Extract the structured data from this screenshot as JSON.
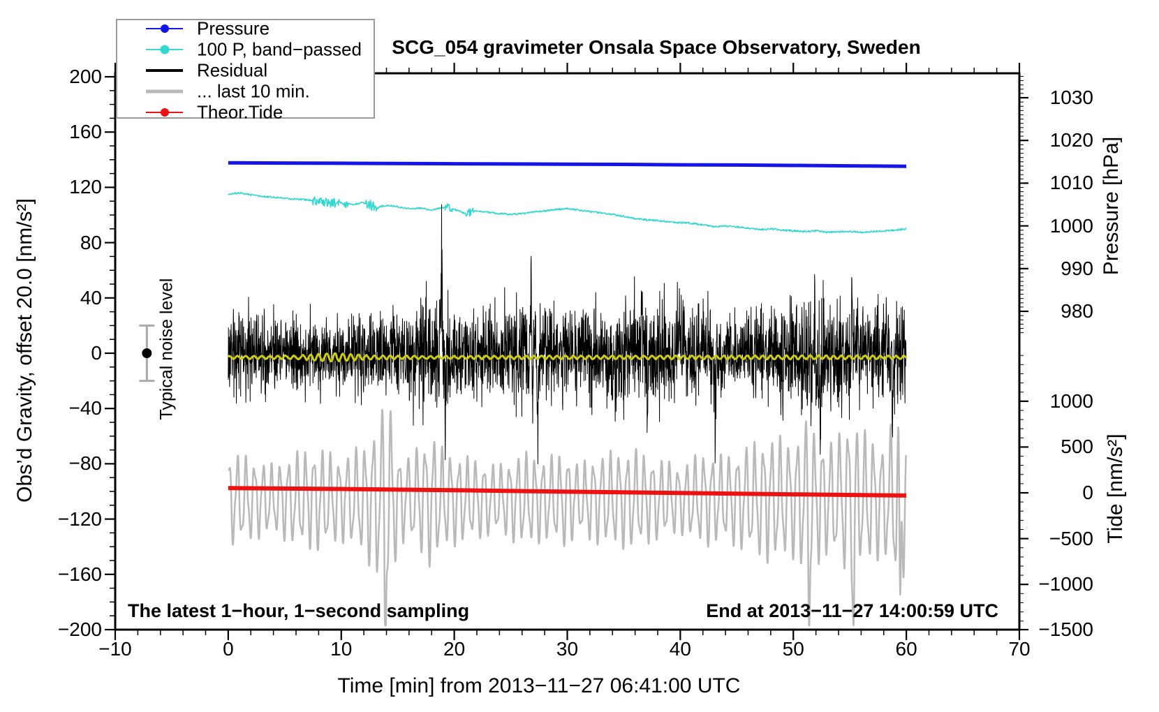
{
  "title": "SCG_054 gravimeter Onsala Space Observatory, Sweden",
  "annotations": {
    "sampling_note": "The latest 1−hour, 1−second sampling",
    "end_time_note": "End at 2013−11−27 14:00:59 UTC",
    "noise_level_label": "Typical noise level",
    "noise_marker": {
      "t_min": -7.2,
      "value": 0,
      "error": 20,
      "bar_color": "#aaaaaa",
      "dot_color": "#000000"
    }
  },
  "legend": {
    "items": [
      {
        "label": "Pressure",
        "color": "#1515e8",
        "line_width": 2,
        "dot": true,
        "dot_size": 12
      },
      {
        "label": "100 P, band−passed",
        "color": "#35d8cf",
        "line_width": 2,
        "dot": true,
        "dot_size": 13
      },
      {
        "label": "Residual",
        "color": "#000000",
        "line_width": 4,
        "dot": false,
        "dot_size": 0
      },
      {
        "label": "... last 10 min.",
        "color": "#b9b9b9",
        "line_width": 5,
        "dot": false,
        "dot_size": 0
      },
      {
        "label": "Theor.Tide",
        "color": "#ee1111",
        "line_width": 2,
        "dot": true,
        "dot_size": 12
      }
    ]
  },
  "chart_data": {
    "type": "line",
    "axes": {
      "x": {
        "label": "Time [min] from 2013−11−27 06:41:00 UTC",
        "range": [
          -10,
          70
        ],
        "tick_values": [
          -10,
          0,
          10,
          20,
          30,
          40,
          50,
          60,
          70
        ],
        "tick_labels": [
          "−10",
          "0",
          "10",
          "20",
          "30",
          "40",
          "50",
          "60",
          "70"
        ],
        "minor_tick_step": 2
      },
      "y_gravity": {
        "label": "Obs’d Gravity,  offset 20.0 [nm/s²]",
        "range": [
          -200,
          202.5
        ],
        "tick_values": [
          200,
          160,
          120,
          80,
          40,
          0,
          -40,
          -80,
          -120,
          -160,
          -200
        ],
        "tick_labels": [
          "200",
          "160",
          "120",
          "80",
          "40",
          "0",
          "−40",
          "−80",
          "−120",
          "−160",
          "−200"
        ],
        "minor_tick_step": 10
      },
      "y_pressure": {
        "label": "Pressure [hPa]",
        "tick_values": [
          1030,
          1020,
          1010,
          1000,
          990,
          980
        ],
        "tick_labels": [
          "1030",
          "1020",
          "1010",
          "1000",
          "990",
          "980"
        ],
        "minor_tick_step": 1
      },
      "y_tide": {
        "label": "Tide [nm/s²]",
        "tick_values": [
          1000,
          500,
          0,
          -500,
          -1000,
          -1500
        ],
        "tick_labels": [
          "1000",
          "500",
          "0",
          "−500",
          "−1000",
          "−1500"
        ],
        "minor_tick_step": 100
      }
    },
    "series": {
      "pressure": {
        "name": "Pressure",
        "axis": "pressure",
        "color": "#1515e8",
        "width": 5,
        "anchors_hpa": [
          [
            0,
            1014.75
          ],
          [
            5,
            1014.7
          ],
          [
            10,
            1014.65
          ],
          [
            15,
            1014.6
          ],
          [
            20,
            1014.55
          ],
          [
            25,
            1014.5
          ],
          [
            30,
            1014.45
          ],
          [
            35,
            1014.4
          ],
          [
            40,
            1014.3
          ],
          [
            45,
            1014.25
          ],
          [
            50,
            1014.15
          ],
          [
            55,
            1014.05
          ],
          [
            60,
            1013.95
          ]
        ]
      },
      "band_passed": {
        "name": "100 P, band−passed",
        "axis": "gravity",
        "color": "#35d8cf",
        "width": 1.6,
        "anchors": [
          [
            0,
            115
          ],
          [
            1,
            116
          ],
          [
            2,
            114.5
          ],
          [
            3,
            113.5
          ],
          [
            4,
            113
          ],
          [
            5,
            112
          ],
          [
            6,
            111.5
          ],
          [
            7,
            111
          ],
          [
            8,
            110
          ],
          [
            9,
            108.5
          ],
          [
            10,
            109
          ],
          [
            11,
            107.5
          ],
          [
            12,
            109
          ],
          [
            13,
            105.5
          ],
          [
            14,
            107
          ],
          [
            15,
            106
          ],
          [
            16,
            104.5
          ],
          [
            17,
            105
          ],
          [
            18,
            103.5
          ],
          [
            19,
            105.5
          ],
          [
            20,
            104
          ],
          [
            21,
            101
          ],
          [
            22,
            103
          ],
          [
            23,
            102
          ],
          [
            24,
            101
          ],
          [
            25,
            100.5
          ],
          [
            26,
            101
          ],
          [
            27,
            102
          ],
          [
            28,
            103
          ],
          [
            29,
            104
          ],
          [
            30,
            104.5
          ],
          [
            31,
            103.5
          ],
          [
            32,
            102.5
          ],
          [
            33,
            101.5
          ],
          [
            34,
            100.5
          ],
          [
            35,
            99
          ],
          [
            36,
            97.5
          ],
          [
            37,
            96.5
          ],
          [
            38,
            96
          ],
          [
            39,
            95
          ],
          [
            40,
            94.5
          ],
          [
            41,
            94
          ],
          [
            42,
            93
          ],
          [
            43,
            91.5
          ],
          [
            44,
            92
          ],
          [
            45,
            91.5
          ],
          [
            46,
            90.5
          ],
          [
            47,
            89.5
          ],
          [
            48,
            90
          ],
          [
            49,
            89
          ],
          [
            50,
            88.5
          ],
          [
            51,
            88
          ],
          [
            52,
            88.5
          ],
          [
            53,
            87.5
          ],
          [
            54,
            88
          ],
          [
            55,
            88
          ],
          [
            56,
            87.5
          ],
          [
            57,
            88
          ],
          [
            58,
            88.5
          ],
          [
            59,
            89
          ],
          [
            60,
            90
          ]
        ],
        "noise": 0.6,
        "spike_regions": [
          [
            7.4,
            10.6,
            2.6
          ],
          [
            12.2,
            13.3,
            3.2
          ],
          [
            19.2,
            19.9,
            2.8
          ],
          [
            21.0,
            21.7,
            2.2
          ]
        ]
      },
      "residual": {
        "name": "Residual",
        "axis": "gravity",
        "color": "#000000",
        "width": 1,
        "mean": 0,
        "step": 0.02,
        "sigma_anchors": [
          [
            0,
            16
          ],
          [
            3,
            15
          ],
          [
            6,
            14
          ],
          [
            9,
            13
          ],
          [
            11,
            14
          ],
          [
            14,
            15
          ],
          [
            17,
            18
          ],
          [
            18,
            21
          ],
          [
            19,
            24
          ],
          [
            20,
            17
          ],
          [
            22,
            15
          ],
          [
            25,
            18
          ],
          [
            26,
            21
          ],
          [
            27,
            22
          ],
          [
            28,
            17
          ],
          [
            30,
            15
          ],
          [
            32,
            16
          ],
          [
            34,
            17
          ],
          [
            36,
            20
          ],
          [
            37,
            19
          ],
          [
            39,
            19
          ],
          [
            41,
            18
          ],
          [
            43,
            17
          ],
          [
            45,
            15
          ],
          [
            47,
            16
          ],
          [
            49,
            18
          ],
          [
            51,
            21
          ],
          [
            52,
            22
          ],
          [
            54,
            18
          ],
          [
            56,
            16
          ],
          [
            58,
            17
          ],
          [
            60,
            18
          ]
        ],
        "spikes": [
          [
            18.9,
            57
          ],
          [
            19.25,
            -60
          ],
          [
            26.8,
            57
          ],
          [
            27.4,
            -54
          ],
          [
            36.6,
            46
          ],
          [
            37.1,
            -60
          ],
          [
            39.9,
            50
          ],
          [
            43.1,
            -48
          ],
          [
            51.9,
            55
          ],
          [
            52.4,
            -58
          ],
          [
            55.2,
            45
          ],
          [
            58.8,
            -50
          ]
        ]
      },
      "residual_smooth": {
        "name": "Residual smoothed",
        "axis": "gravity",
        "color": "#cccc12",
        "width": 3,
        "base": -3,
        "period_min": 0.7,
        "noise": 0.5,
        "amp_anchors": [
          [
            0,
            1.0
          ],
          [
            6,
            1.1
          ],
          [
            7.5,
            2.2
          ],
          [
            9,
            3.0
          ],
          [
            10,
            2.6
          ],
          [
            11.5,
            2.0
          ],
          [
            13,
            1.3
          ],
          [
            18,
            1.0
          ],
          [
            25,
            1.1
          ],
          [
            32,
            1.2
          ],
          [
            40,
            1.2
          ],
          [
            48,
            1.3
          ],
          [
            55,
            1.2
          ],
          [
            60,
            1.1
          ]
        ]
      },
      "residual_last10": {
        "name": "... last 10 min.",
        "axis": "tide",
        "color": "#b9b9b9",
        "width": 2.5,
        "center": -70,
        "period_min": 0.75,
        "step": 0.03,
        "amp_anchors": [
          [
            0,
            430
          ],
          [
            2,
            380
          ],
          [
            4,
            310
          ],
          [
            6,
            430
          ],
          [
            8,
            470
          ],
          [
            10,
            380
          ],
          [
            12,
            500
          ],
          [
            13.5,
            780
          ],
          [
            14.3,
            880
          ],
          [
            15,
            430
          ],
          [
            16,
            380
          ],
          [
            18,
            620
          ],
          [
            19,
            450
          ],
          [
            20,
            420
          ],
          [
            22,
            360
          ],
          [
            24,
            310
          ],
          [
            26,
            430
          ],
          [
            28,
            380
          ],
          [
            30,
            430
          ],
          [
            31,
            310
          ],
          [
            32,
            390
          ],
          [
            34,
            430
          ],
          [
            36,
            450
          ],
          [
            38,
            370
          ],
          [
            40,
            310
          ],
          [
            42,
            430
          ],
          [
            44,
            390
          ],
          [
            46,
            490
          ],
          [
            48,
            580
          ],
          [
            50,
            530
          ],
          [
            51,
            700
          ],
          [
            52,
            620
          ],
          [
            53,
            500
          ],
          [
            54,
            580
          ],
          [
            55,
            760
          ],
          [
            56,
            620
          ],
          [
            57,
            580
          ],
          [
            58,
            500
          ],
          [
            59,
            760
          ],
          [
            60,
            700
          ]
        ],
        "deep_spikes": [
          [
            13.9,
            -1150
          ],
          [
            51.4,
            -1050
          ],
          [
            55.35,
            -1230
          ],
          [
            59.45,
            -1320
          ]
        ]
      },
      "theor_tide": {
        "name": "Theor.Tide",
        "axis": "tide",
        "color": "#ee1111",
        "width": 6,
        "anchors": [
          [
            0,
            52
          ],
          [
            10,
            42
          ],
          [
            20,
            28
          ],
          [
            30,
            12
          ],
          [
            40,
            -2
          ],
          [
            50,
            -17
          ],
          [
            60,
            -30
          ]
        ]
      }
    }
  }
}
